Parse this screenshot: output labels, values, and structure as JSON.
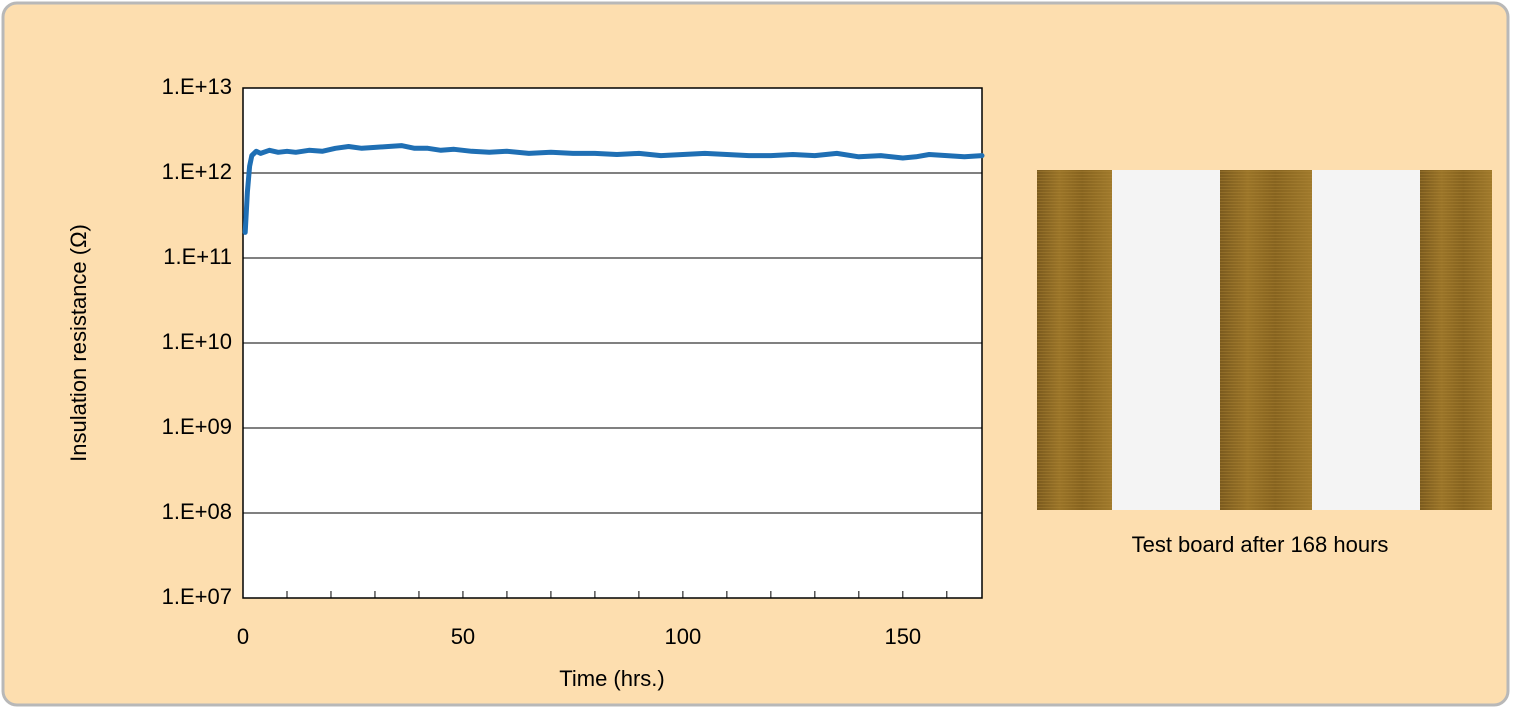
{
  "chart_data": {
    "type": "line",
    "xlabel": "Time (hrs.)",
    "ylabel": "Insulation resistance (Ω)",
    "x": [
      0.5,
      1,
      1.5,
      2,
      3,
      4,
      6,
      8,
      10,
      12,
      15,
      18,
      21,
      24,
      27,
      30,
      33,
      36,
      39,
      42,
      45,
      48,
      52,
      56,
      60,
      65,
      70,
      75,
      80,
      85,
      90,
      95,
      100,
      105,
      110,
      115,
      120,
      125,
      130,
      135,
      140,
      145,
      150,
      153,
      156,
      160,
      164,
      168
    ],
    "series": [
      {
        "color": "#1f6fb4",
        "values": [
          200000000000.0,
          600000000000.0,
          1200000000000.0,
          1600000000000.0,
          1800000000000.0,
          1700000000000.0,
          1850000000000.0,
          1750000000000.0,
          1800000000000.0,
          1750000000000.0,
          1850000000000.0,
          1800000000000.0,
          1950000000000.0,
          2050000000000.0,
          1950000000000.0,
          2000000000000.0,
          2050000000000.0,
          2100000000000.0,
          1950000000000.0,
          1950000000000.0,
          1850000000000.0,
          1900000000000.0,
          1800000000000.0,
          1750000000000.0,
          1800000000000.0,
          1700000000000.0,
          1750000000000.0,
          1700000000000.0,
          1700000000000.0,
          1650000000000.0,
          1700000000000.0,
          1600000000000.0,
          1650000000000.0,
          1700000000000.0,
          1650000000000.0,
          1600000000000.0,
          1600000000000.0,
          1650000000000.0,
          1600000000000.0,
          1700000000000.0,
          1550000000000.0,
          1600000000000.0,
          1500000000000.0,
          1550000000000.0,
          1650000000000.0,
          1600000000000.0,
          1550000000000.0,
          1600000000000.0
        ]
      }
    ],
    "xlim": [
      0,
      168
    ],
    "xticks": [
      0,
      50,
      100,
      150
    ],
    "xticks_minor": [
      10,
      20,
      30,
      40,
      60,
      70,
      80,
      90,
      110,
      120,
      130,
      140,
      160
    ],
    "ylim": [
      10000000.0,
      10000000000000.0
    ],
    "yscale": "log",
    "yticks": [
      {
        "value": 10000000.0,
        "label": "1.E+07"
      },
      {
        "value": 100000000.0,
        "label": "1.E+08"
      },
      {
        "value": 1000000000.0,
        "label": "1.E+09"
      },
      {
        "value": 10000000000.0,
        "label": "1.E+10"
      },
      {
        "value": 100000000000.0,
        "label": "1.E+11"
      },
      {
        "value": 1000000000000.0,
        "label": "1.E+12"
      },
      {
        "value": 10000000000000.0,
        "label": "1.E+13"
      }
    ],
    "grid": true
  },
  "image": {
    "caption": "Test board after 168 hours"
  }
}
